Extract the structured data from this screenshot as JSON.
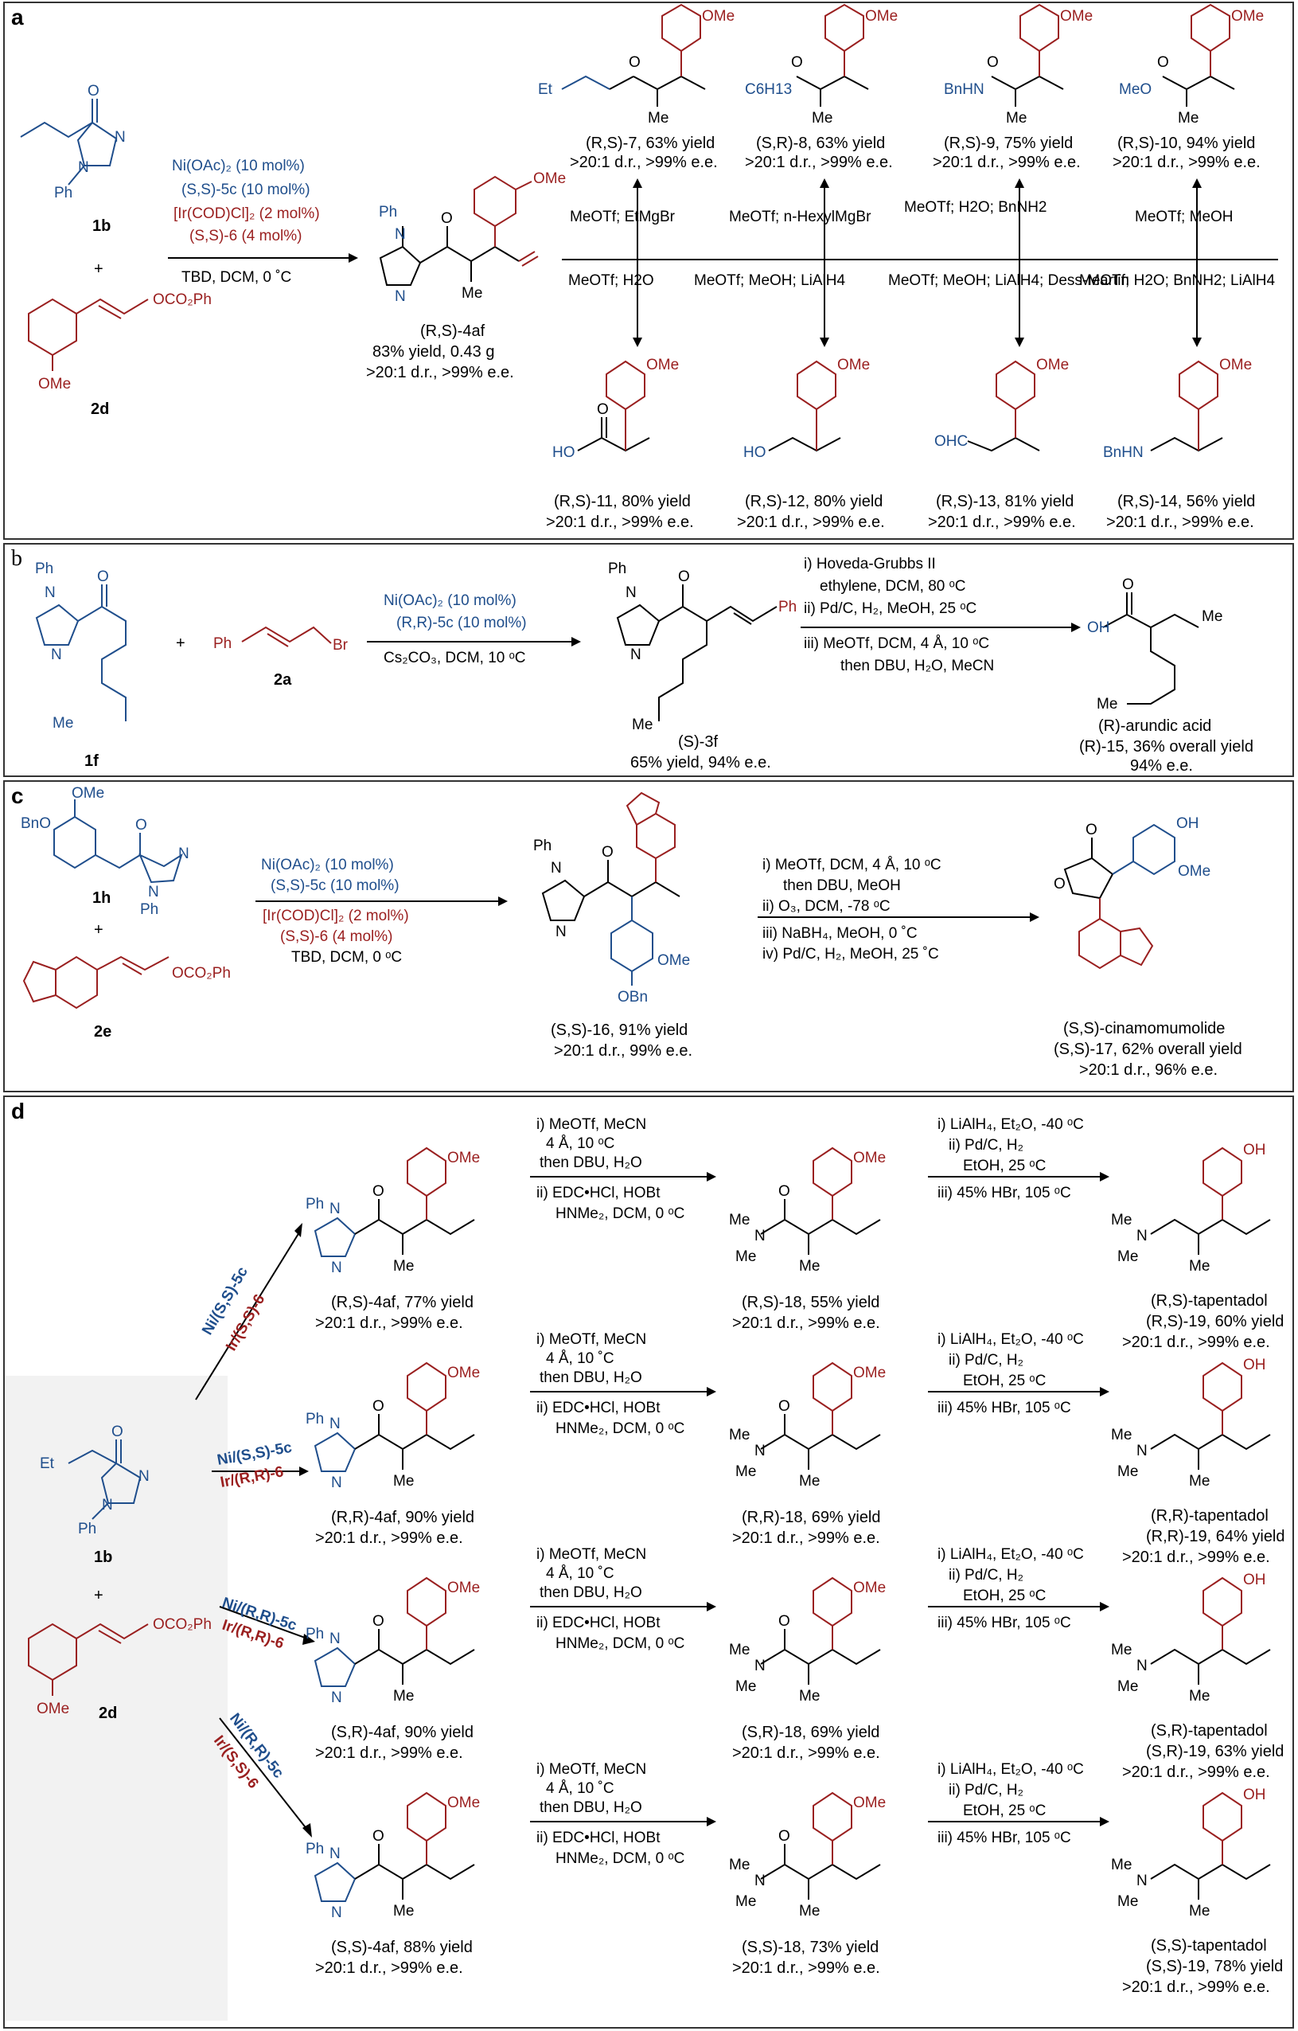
{
  "panels": {
    "a": {
      "label": "a",
      "sm1": "1b",
      "sm2": "2d",
      "plus": "+",
      "cond1": "Ni(OAc)₂ (10 mol%)",
      "cond2": "(S,S)-5c (10 mol%)",
      "cond3": "[Ir(COD)Cl]₂ (2 mol%)",
      "cond4": "(S,S)-6 (4 mol%)",
      "cond5": "TBD, DCM, 0 ˚C",
      "prod": "(R,S)-4af",
      "prod_yield": "83% yield, 0.43 g",
      "prod_sel": ">20:1 d.r., >99% e.e.",
      "top_products": [
        {
          "name": "(R,S)-7, 63% yield",
          "sel": ">20:1 d.r., >99% e.e.",
          "reag": "MeOTf; EtMgBr",
          "grp": "Et"
        },
        {
          "name": "(S,R)-8, 63% yield",
          "sel": ">20:1 d.r., >99% e.e.",
          "reag": "MeOTf; n-HexylMgBr",
          "grp": "C6H13"
        },
        {
          "name": "(R,S)-9, 75% yield",
          "sel": ">20:1 d.r., >99% e.e.",
          "reag": "MeOTf; H2O; BnNH2",
          "grp": "BnHN"
        },
        {
          "name": "(R,S)-10, 94% yield",
          "sel": ">20:1 d.r., >99% e.e.",
          "reag": "MeOTf; MeOH",
          "grp": "MeO"
        }
      ],
      "bottom_products": [
        {
          "name": "(R,S)-11, 80% yield",
          "sel": ">20:1 d.r., >99% e.e.",
          "reag": "MeOTf; H2O",
          "grp": "HO"
        },
        {
          "name": "(R,S)-12, 80% yield",
          "sel": ">20:1 d.r., >99% e.e.",
          "reag": "MeOTf; MeOH; LiAlH4",
          "grp": "HO"
        },
        {
          "name": "(R,S)-13, 81% yield",
          "sel": ">20:1 d.r., >99% e.e.",
          "reag": "MeOTf; MeOH; LiAlH4; Dess-Martin",
          "grp": "OHC"
        },
        {
          "name": "(R,S)-14, 56% yield",
          "sel": ">20:1 d.r., >99% e.e.",
          "reag": "MeOTf; H2O; BnNH2; LiAlH4",
          "grp": "BnHN"
        }
      ]
    },
    "b": {
      "label": "b",
      "sm1": "1f",
      "sm2": "2a",
      "plus": "+",
      "cond1": "Ni(OAc)₂ (10 mol%)",
      "cond2": "(R,R)-5c (10 mol%)",
      "cond3": "Cs₂CO₃, DCM, 10 ᵒC",
      "prod": "(S)-3f",
      "prod_sel": "65% yield, 94% e.e.",
      "step1": "i) Hoveda-Grubbs II",
      "step1b": "ethylene, DCM, 80 ᵒC",
      "step2": "ii) Pd/C, H₂, MeOH, 25 ᵒC",
      "step3": "iii) MeOTf, DCM, 4 Å, 10 ᵒC",
      "step3b": "then DBU, H₂O, MeCN",
      "final1": "(R)-arundic acid",
      "final2": "(R)-15, 36% overall yield",
      "final3": "94% e.e."
    },
    "c": {
      "label": "c",
      "sm1": "1h",
      "sm2": "2e",
      "plus": "+",
      "cond1": "Ni(OAc)₂ (10 mol%)",
      "cond2": "(S,S)-5c (10 mol%)",
      "cond3": "[Ir(COD)Cl]₂ (2 mol%)",
      "cond4": "(S,S)-6 (4 mol%)",
      "cond5": "TBD, DCM, 0 ᵒC",
      "prod": "(S,S)-16, 91% yield",
      "prod_sel": ">20:1 d.r., 99% e.e.",
      "step1": "i) MeOTf, DCM, 4 Å, 10 ᵒC",
      "step1b": "then DBU, MeOH",
      "step2": "ii) O₃, DCM, -78 ᵒC",
      "step3": "iii) NaBH₄, MeOH, 0 ˚C",
      "step4": "iv) Pd/C, H₂, MeOH, 25 ˚C",
      "final1": "(S,S)-cinamomumolide",
      "final2": "(S,S)-17, 62% overall yield",
      "final3": ">20:1 d.r., 96% e.e."
    },
    "d": {
      "label": "d",
      "sm1": "1b",
      "sm2": "2d",
      "plus": "+",
      "rows": [
        {
          "cat1": "Ni/(S,S)-5c",
          "cat2": "Ir/(S,S)-6",
          "p1": "(R,S)-4af, 77% yield",
          "p1s": ">20:1 d.r., >99% e.e.",
          "c1": "i) MeOTf, MeCN",
          "c1b": "4 Å, 10 ᵒC",
          "c1c": "then DBU, H₂O",
          "c2": "ii) EDC•HCl, HOBt",
          "c2b": "HNMe₂, DCM, 0 ᵒC",
          "p2": "(R,S)-18, 55% yield",
          "p2s": ">20:1 d.r., >99% e.e.",
          "d1": "i) LiAlH₄, Et₂O, -40 ᵒC",
          "d2": "ii) Pd/C, H₂",
          "d3": "EtOH, 25 ᵒC",
          "d4": "iii) 45% HBr, 105 ᵒC",
          "f1": "(R,S)-tapentadol",
          "f2": "(R,S)-19, 60% yield",
          "f3": ">20:1 d.r., >99% e.e."
        },
        {
          "cat1": "Ni/(S,S)-5c",
          "cat2": "Ir/(R,R)-6",
          "p1": "(R,R)-4af, 90% yield",
          "p1s": ">20:1 d.r., >99% e.e.",
          "c1": "i) MeOTf, MeCN",
          "c1b": "4 Å, 10 ˚C",
          "c1c": "then DBU, H₂O",
          "c2": "ii) EDC•HCl, HOBt",
          "c2b": "HNMe₂, DCM, 0 ᵒC",
          "p2": "(R,R)-18, 69% yield",
          "p2s": ">20:1 d.r., >99% e.e.",
          "d1": "i) LiAlH₄, Et₂O, -40 ᵒC",
          "d2": "ii) Pd/C, H₂",
          "d3": "EtOH, 25 ᵒC",
          "d4": "iii) 45% HBr, 105 ᵒC",
          "f1": "(R,R)-tapentadol",
          "f2": "(R,R)-19, 64% yield",
          "f3": ">20:1 d.r., >99% e.e."
        },
        {
          "cat1": "Ni/(R,R)-5c",
          "cat2": "Ir/(R,R)-6",
          "p1": "(S,R)-4af, 90% yield",
          "p1s": ">20:1 d.r., >99% e.e.",
          "c1": "i) MeOTf, MeCN",
          "c1b": "4 Å, 10 ˚C",
          "c1c": "then DBU, H₂O",
          "c2": "ii) EDC•HCl, HOBt",
          "c2b": "HNMe₂, DCM, 0 ᵒC",
          "p2": "(S,R)-18, 69% yield",
          "p2s": ">20:1 d.r., >99% e.e.",
          "d1": "i) LiAlH₄, Et₂O, -40 ᵒC",
          "d2": "ii) Pd/C, H₂",
          "d3": "EtOH, 25 ᵒC",
          "d4": "iii) 45% HBr, 105 ᵒC",
          "f1": "(S,R)-tapentadol",
          "f2": "(S,R)-19, 63% yield",
          "f3": ">20:1 d.r., >99% e.e."
        },
        {
          "cat1": "Ni/(R,R)-5c",
          "cat2": "Ir/(S,S)-6",
          "p1": "(S,S)-4af, 88% yield",
          "p1s": ">20:1 d.r., >99% e.e.",
          "c1": "i) MeOTf, MeCN",
          "c1b": "4 Å, 10 ˚C",
          "c1c": "then DBU, H₂O",
          "c2": "ii) EDC•HCl, HOBt",
          "c2b": "HNMe₂, DCM, 0 ᵒC",
          "p2": "(S,S)-18, 73% yield",
          "p2s": ">20:1 d.r., >99% e.e.",
          "d1": "i) LiAlH₄, Et₂O, -40 ᵒC",
          "d2": "ii) Pd/C, H₂",
          "d3": "EtOH, 25 ᵒC",
          "d4": "iii) 45% HBr, 105 ᵒC",
          "f1": "(S,S)-tapentadol",
          "f2": "(S,S)-19, 78% yield",
          "f3": ">20:1 d.r., >99% e.e."
        }
      ]
    }
  },
  "atoms": {
    "ome": "OMe",
    "oh": "OH",
    "o": "O",
    "n": "N",
    "ph": "Ph",
    "me": "Me",
    "et": "Et",
    "br": "Br",
    "obn": "OBn",
    "bno": "BnO",
    "oco2ph": "OCO₂Ph",
    "nme": "N"
  }
}
